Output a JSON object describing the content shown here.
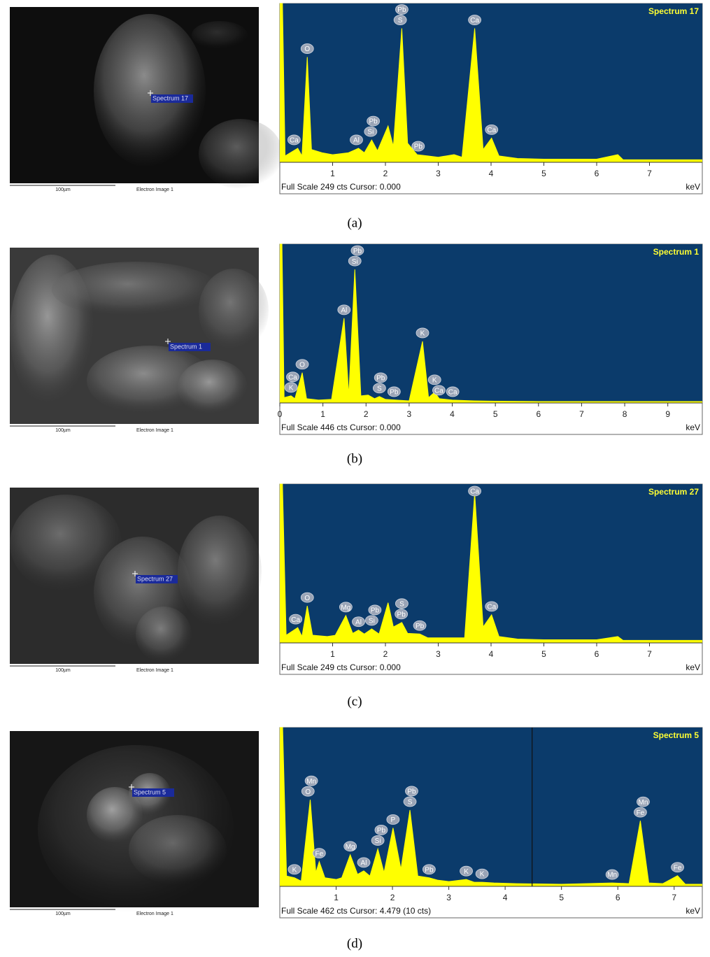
{
  "chart_data": [
    {
      "type": "area",
      "title": "Spectrum 17",
      "color": "#ffff00",
      "xlim": [
        0,
        8
      ],
      "xticks": [
        1,
        2,
        3,
        4,
        5,
        6,
        7
      ],
      "ylim": [
        0,
        249
      ],
      "x_unit": "keV",
      "footer": "Full Scale 249 cts Cursor: 0.000",
      "x": [
        0,
        0.05,
        0.1,
        0.2,
        0.34,
        0.42,
        0.52,
        0.6,
        0.8,
        1.0,
        1.3,
        1.49,
        1.6,
        1.74,
        1.85,
        2.05,
        2.15,
        2.31,
        2.42,
        2.6,
        2.8,
        3.0,
        3.3,
        3.45,
        3.69,
        3.85,
        4.01,
        4.15,
        4.5,
        5,
        6,
        6.4,
        6.5,
        7,
        8
      ],
      "values": [
        249,
        249,
        10,
        15,
        22,
        10,
        165,
        20,
        15,
        12,
        15,
        22,
        15,
        35,
        18,
        57,
        25,
        210,
        30,
        12,
        10,
        8,
        12,
        8,
        210,
        20,
        38,
        10,
        6,
        5,
        5,
        12,
        4,
        4,
        4
      ],
      "annotations": [
        {
          "text": "Ca",
          "x": 0.27
        },
        {
          "text": "O",
          "x": 0.52
        },
        {
          "text": "Al",
          "x": 1.45
        },
        {
          "text": "Si",
          "x": 1.72
        },
        {
          "text": "Pb",
          "x": 1.77
        },
        {
          "text": "S",
          "x": 2.28
        },
        {
          "text": "Pb",
          "x": 2.31
        },
        {
          "text": "Pb",
          "x": 2.62
        },
        {
          "text": "Ca",
          "x": 3.69
        },
        {
          "text": "Ca",
          "x": 4.01
        }
      ],
      "image": {
        "marker": "Spectrum 17",
        "scale_bar": "100µm",
        "caption": "Electron Image 1"
      },
      "label": "(a)"
    },
    {
      "type": "area",
      "title": "Spectrum 1",
      "color": "#ffff00",
      "xlim": [
        0,
        9.8
      ],
      "xticks": [
        0,
        1,
        2,
        3,
        4,
        5,
        6,
        7,
        8,
        9
      ],
      "ylim": [
        0,
        446
      ],
      "x_unit": "keV",
      "footer": "Full Scale 446 cts Cursor: 0.000",
      "x": [
        0,
        0.05,
        0.1,
        0.26,
        0.35,
        0.52,
        0.62,
        0.9,
        1.2,
        1.49,
        1.6,
        1.74,
        1.88,
        2.05,
        2.2,
        2.31,
        2.45,
        2.7,
        3.0,
        3.31,
        3.45,
        3.59,
        3.7,
        4.0,
        4.5,
        5,
        6,
        7,
        8,
        9,
        9.8
      ],
      "values": [
        446,
        446,
        15,
        20,
        12,
        85,
        12,
        8,
        10,
        238,
        20,
        375,
        20,
        22,
        12,
        18,
        10,
        8,
        6,
        173,
        15,
        30,
        12,
        8,
        6,
        5,
        4,
        4,
        4,
        4,
        4
      ],
      "annotations": [
        {
          "text": "K",
          "x": 0.26
        },
        {
          "text": "Ca",
          "x": 0.3
        },
        {
          "text": "O",
          "x": 0.52
        },
        {
          "text": "Al",
          "x": 1.49
        },
        {
          "text": "Si",
          "x": 1.74
        },
        {
          "text": "Pb",
          "x": 1.8
        },
        {
          "text": "S",
          "x": 2.31
        },
        {
          "text": "Pb",
          "x": 2.34
        },
        {
          "text": "Pb",
          "x": 2.65
        },
        {
          "text": "K",
          "x": 3.31
        },
        {
          "text": "Ca",
          "x": 3.69
        },
        {
          "text": "K",
          "x": 3.59
        },
        {
          "text": "Ca",
          "x": 4.01
        }
      ],
      "image": {
        "marker": "Spectrum 1",
        "scale_bar": "100µm",
        "caption": "Electron Image 1"
      },
      "label": "(b)"
    },
    {
      "type": "area",
      "title": "Spectrum 27",
      "color": "#ffff00",
      "xlim": [
        0,
        8
      ],
      "xticks": [
        1,
        2,
        3,
        4,
        5,
        6,
        7
      ],
      "ylim": [
        0,
        249
      ],
      "x_unit": "keV",
      "footer": "Full Scale 249 cts Cursor: 0.000",
      "x": [
        0,
        0.05,
        0.12,
        0.34,
        0.42,
        0.52,
        0.62,
        0.9,
        1.05,
        1.25,
        1.38,
        1.49,
        1.6,
        1.74,
        1.88,
        2.05,
        2.15,
        2.31,
        2.42,
        2.65,
        2.8,
        3.0,
        3.3,
        3.5,
        3.69,
        3.85,
        4.01,
        4.15,
        4.5,
        5,
        6,
        6.4,
        6.5,
        7,
        8
      ],
      "values": [
        249,
        249,
        12,
        24,
        10,
        58,
        12,
        10,
        12,
        43,
        15,
        20,
        14,
        22,
        14,
        63,
        25,
        32,
        15,
        14,
        8,
        8,
        8,
        8,
        235,
        25,
        44,
        10,
        6,
        5,
        5,
        10,
        4,
        4,
        4
      ],
      "annotations": [
        {
          "text": "Ca",
          "x": 0.3
        },
        {
          "text": "O",
          "x": 0.52
        },
        {
          "text": "Mg",
          "x": 1.25
        },
        {
          "text": "Al",
          "x": 1.49
        },
        {
          "text": "Si",
          "x": 1.74
        },
        {
          "text": "Pb",
          "x": 1.8
        },
        {
          "text": "Pb",
          "x": 2.3
        },
        {
          "text": "S",
          "x": 2.31
        },
        {
          "text": "Pb",
          "x": 2.65
        },
        {
          "text": "Ca",
          "x": 3.69
        },
        {
          "text": "Ca",
          "x": 4.01
        }
      ],
      "image": {
        "marker": "Spectrum 27",
        "scale_bar": "100µm",
        "caption": "Electron Image 1"
      },
      "label": "(c)"
    },
    {
      "type": "area",
      "title": "Spectrum 5",
      "color": "#ffff00",
      "xlim": [
        0,
        7.5
      ],
      "xticks": [
        1,
        2,
        3,
        4,
        5,
        6,
        7
      ],
      "ylim": [
        0,
        462
      ],
      "x_unit": "keV",
      "footer": "Full Scale 462 cts Cursor: 4.479  (10 cts)",
      "cursor": 4.479,
      "x": [
        0,
        0.05,
        0.12,
        0.26,
        0.38,
        0.54,
        0.64,
        0.7,
        0.8,
        1.0,
        1.1,
        1.25,
        1.38,
        1.49,
        1.6,
        1.74,
        1.85,
        2.01,
        2.15,
        2.31,
        2.45,
        2.65,
        2.8,
        3.0,
        3.31,
        3.45,
        3.59,
        3.8,
        4.2,
        5,
        5.9,
        6.2,
        6.4,
        6.55,
        6.8,
        7.06,
        7.2,
        7.5
      ],
      "values": [
        462,
        462,
        30,
        25,
        15,
        252,
        40,
        72,
        25,
        20,
        25,
        92,
        35,
        45,
        30,
        109,
        40,
        170,
        50,
        222,
        30,
        25,
        18,
        14,
        20,
        12,
        12,
        10,
        8,
        6,
        10,
        8,
        191,
        10,
        8,
        31,
        6,
        6
      ],
      "annotations": [
        {
          "text": "K",
          "x": 0.26
        },
        {
          "text": "O",
          "x": 0.5
        },
        {
          "text": "Mn",
          "x": 0.56
        },
        {
          "text": "Fe",
          "x": 0.7
        },
        {
          "text": "Mg",
          "x": 1.25
        },
        {
          "text": "Al",
          "x": 1.49
        },
        {
          "text": "Si",
          "x": 1.74
        },
        {
          "text": "Pb",
          "x": 1.8
        },
        {
          "text": "P",
          "x": 2.01
        },
        {
          "text": "S",
          "x": 2.31
        },
        {
          "text": "Pb",
          "x": 2.34
        },
        {
          "text": "Pb",
          "x": 2.65
        },
        {
          "text": "K",
          "x": 3.31
        },
        {
          "text": "K",
          "x": 3.59
        },
        {
          "text": "Mn",
          "x": 5.9
        },
        {
          "text": "Fe",
          "x": 6.4
        },
        {
          "text": "Mn",
          "x": 6.45
        },
        {
          "text": "Fe",
          "x": 7.06
        }
      ],
      "image": {
        "marker": "Spectrum 5",
        "scale_bar": "100µm",
        "caption": "Electron Image 1"
      },
      "label": "(d)"
    }
  ]
}
